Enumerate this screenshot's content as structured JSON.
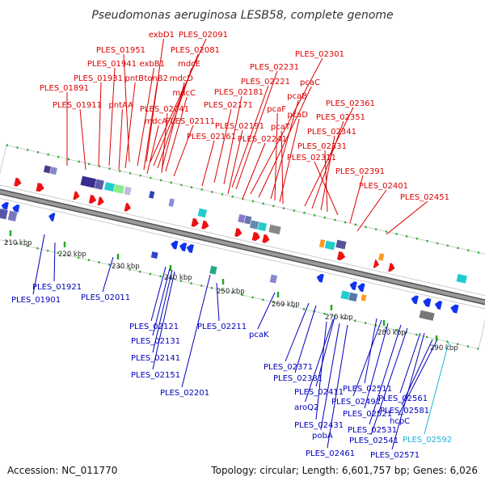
{
  "title": "Pseudomonas aeruginosa LESB58, complete genome",
  "footer": {
    "accession": "Accession: NC_011770",
    "stats": "Topology: circular; Length: 6,601,757 bp; Genes: 6,026"
  },
  "colors": {
    "forward_label": "#dd0000",
    "reverse_label": "#0000bb",
    "highlight_label": "#19b5d8",
    "backbone": "#9a9a9a",
    "forward_arrow": "#ee1111",
    "reverse_arrow": "#1133ee",
    "tick_mark": "#22aa22"
  },
  "axis_ticks": [
    "210 kbp",
    "220 kbp",
    "230 kbp",
    "240 kbp",
    "250 kbp",
    "260 kbp",
    "270 kbp",
    "280 kbp",
    "290 kbp"
  ],
  "forward_genes": [
    "exbD1",
    "PLES_02091",
    "PLES_01951",
    "PLES_02081",
    "PLES_01941",
    "exbB1",
    "mdcE",
    "PLES_01931",
    "pntB",
    "tonB2",
    "mdcD",
    "PLES_01891",
    "pntAA",
    "PLES_01911",
    "mdcC",
    "PLES_02041",
    "PLES_02111",
    "mdcA",
    "PLES_02171",
    "PLES_02181",
    "PLES_02221",
    "PLES_02231",
    "PLES_02301",
    "pcaC",
    "pcaB",
    "pcaF",
    "pcaD",
    "pcaT",
    "PLES_02191",
    "PLES_02161",
    "PLES_02241",
    "PLES_02361",
    "PLES_02351",
    "PLES_02341",
    "PLES_02331",
    "PLES_02311",
    "PLES_02391",
    "PLES_02401",
    "PLES_02451"
  ],
  "reverse_genes": [
    "PLES_01921",
    "PLES_01901",
    "PLES_02011",
    "PLES_02121",
    "PLES_02131",
    "PLES_02141",
    "PLES_02151",
    "PLES_02201",
    "PLES_02211",
    "pcaK",
    "PLES_02371",
    "PLES_02381",
    "PLES_02411",
    "PLES_02511",
    "PLES_02491",
    "aroQ2",
    "PLES_02521",
    "PLES_02431",
    "PLES_02531",
    "pobA",
    "PLES_02541",
    "PLES_02461",
    "PLES_02571",
    "PLES_02561",
    "PLES_02581",
    "hcpC",
    "PLES_02592"
  ],
  "highlighted_gene": "PLES_02592"
}
